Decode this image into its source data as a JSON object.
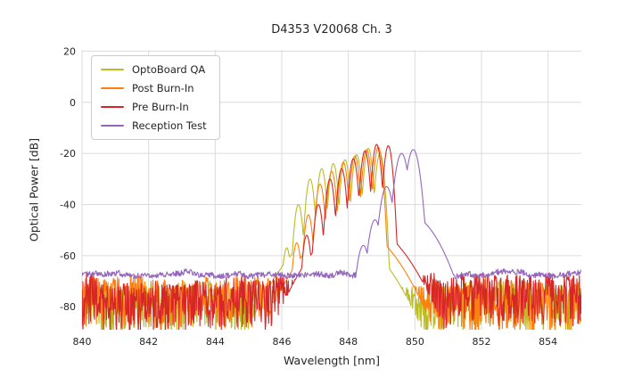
{
  "title": "D4353 V20068 Ch. 3",
  "chart_data": {
    "type": "line",
    "title": "D4353 V20068 Ch. 3",
    "xlabel": "Wavelength [nm]",
    "ylabel": "Optical Power [dB]",
    "xlim": [
      840,
      855
    ],
    "ylim": [
      -89,
      20.5
    ],
    "xticks": [
      840,
      842,
      844,
      846,
      848,
      850,
      852,
      854
    ],
    "yticks": [
      20,
      0,
      -20,
      -40,
      -60,
      -80
    ],
    "grid": true,
    "grid_color": "#dcdcdc",
    "legend_position": "upper-left",
    "series": [
      {
        "name": "OptoBoard QA",
        "color": "#bcbd22",
        "noise_floor_db": {
          "top": -71,
          "spike_depth": 18
        },
        "mode_width_nm": 0.042,
        "pedestal": {
          "center_nm": 847.6,
          "peak_db": -50,
          "width_nm": 0.42
        },
        "modes_nm_db": [
          [
            846.15,
            -57
          ],
          [
            846.5,
            -40
          ],
          [
            846.85,
            -30
          ],
          [
            847.2,
            -26
          ],
          [
            847.55,
            -24
          ],
          [
            847.9,
            -22.5
          ],
          [
            848.25,
            -20.5
          ],
          [
            848.6,
            -18
          ],
          [
            848.95,
            -20
          ]
        ]
      },
      {
        "name": "Post Burn-In",
        "color": "#ff7f0e",
        "noise_floor_db": {
          "top": -70,
          "spike_depth": 19
        },
        "mode_width_nm": 0.042,
        "pedestal": {
          "center_nm": 848.0,
          "peak_db": -48,
          "width_nm": 0.4
        },
        "modes_nm_db": [
          [
            846.45,
            -55
          ],
          [
            846.8,
            -44
          ],
          [
            847.15,
            -32
          ],
          [
            847.5,
            -27
          ],
          [
            847.85,
            -23.5
          ],
          [
            848.2,
            -21
          ],
          [
            848.55,
            -18.5
          ],
          [
            848.9,
            -17.5
          ]
        ]
      },
      {
        "name": "Pre Burn-In",
        "color": "#d62728",
        "noise_floor_db": {
          "top": -69,
          "spike_depth": 20
        },
        "mode_width_nm": 0.042,
        "pedestal": {
          "center_nm": 848.3,
          "peak_db": -47,
          "width_nm": 0.4
        },
        "modes_nm_db": [
          [
            846.75,
            -52
          ],
          [
            847.1,
            -40
          ],
          [
            847.45,
            -30
          ],
          [
            847.8,
            -26
          ],
          [
            848.15,
            -22
          ],
          [
            848.5,
            -19
          ],
          [
            848.85,
            -16.5
          ],
          [
            849.2,
            -17
          ]
        ]
      },
      {
        "name": "Reception Test",
        "color": "#9467bd",
        "noise_floor_db": {
          "top": -66,
          "spike_depth": 2.2
        },
        "mode_width_nm": 0.065,
        "pedestal": {
          "center_nm": 849.8,
          "peak_db": -44,
          "width_nm": 0.28
        },
        "modes_nm_db": [
          [
            848.45,
            -56
          ],
          [
            848.8,
            -46
          ],
          [
            849.15,
            -33
          ],
          [
            849.6,
            -20
          ],
          [
            849.95,
            -18.5
          ]
        ]
      }
    ]
  }
}
